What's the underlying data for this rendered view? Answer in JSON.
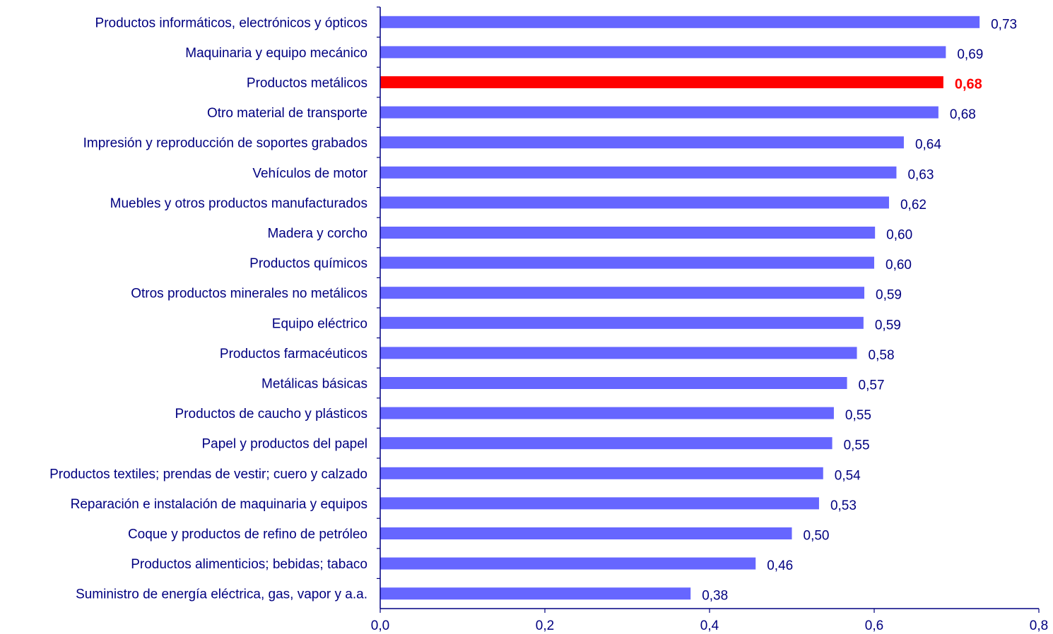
{
  "chart_data": {
    "type": "bar",
    "orientation": "horizontal",
    "categories": [
      "Productos informáticos, electrónicos y ópticos",
      "Maquinaria y equipo mecánico",
      "Productos metálicos",
      "Otro material de transporte",
      "Impresión y reproducción de soportes grabados",
      "Vehículos de motor",
      "Muebles y otros productos manufacturados",
      "Madera y corcho",
      "Productos químicos",
      "Otros productos minerales no metálicos",
      "Equipo eléctrico",
      "Productos farmacéuticos ",
      "Metálicas básicas",
      "Productos de caucho y plásticos",
      "Papel y productos del papel",
      "Productos textiles; prendas de vestir; cuero y calzado",
      "Reparación e instalación de maquinaria y equipos",
      "Coque y productos de refino de petróleo",
      "Productos alimenticios; bebidas; tabaco",
      "Suministro de energía eléctrica, gas, vapor y a.a."
    ],
    "values": [
      0.728,
      0.687,
      0.684,
      0.678,
      0.636,
      0.627,
      0.618,
      0.601,
      0.6,
      0.588,
      0.587,
      0.579,
      0.567,
      0.551,
      0.549,
      0.538,
      0.533,
      0.5,
      0.456,
      0.377
    ],
    "value_labels": [
      "0,73",
      "0,69",
      "0,68",
      "0,68",
      "0,64",
      "0,63",
      "0,62",
      "0,60",
      "0,60",
      "0,59",
      "0,59",
      "0,58",
      "0,57",
      "0,55",
      "0,55",
      "0,54",
      "0,53",
      "0,50",
      "0,46",
      "0,38"
    ],
    "highlight_index": 2,
    "xlim": [
      0,
      0.8
    ],
    "x_ticks": [
      0,
      0.2,
      0.4,
      0.6,
      0.8
    ],
    "x_tick_labels": [
      "0,0",
      "0,2",
      "0,4",
      "0,6",
      "0,8"
    ],
    "grid": false,
    "colors": {
      "bar": "#6666ff",
      "highlight": "#ff0000",
      "text": "#000080",
      "axis": "#000080"
    }
  }
}
